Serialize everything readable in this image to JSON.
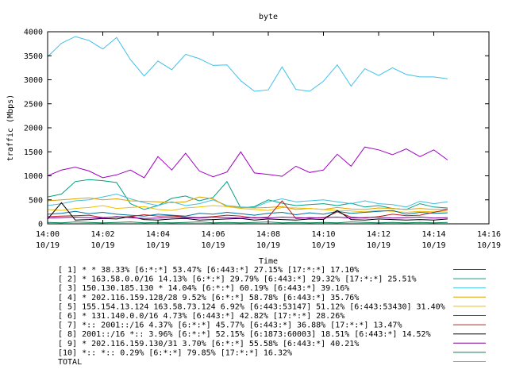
{
  "chart_data": {
    "type": "line",
    "title": "byte",
    "xlabel": "Time",
    "ylabel": "traffic (Mbps)",
    "ylim": [
      0,
      4000
    ],
    "yticks": [
      0,
      500,
      1000,
      1500,
      2000,
      2500,
      3000,
      3500,
      4000
    ],
    "ytick_labels": [
      "0",
      "500",
      "1000",
      "1500",
      "2000",
      "2500",
      "3000",
      "3500",
      "4000"
    ],
    "xlim": [
      0,
      16
    ],
    "xtick_values": [
      0,
      2,
      4,
      6,
      8,
      10,
      12,
      14,
      16
    ],
    "xtick_labels": [
      [
        "14:00",
        "10/19"
      ],
      [
        "14:02",
        "10/19"
      ],
      [
        "14:04",
        "10/19"
      ],
      [
        "14:06",
        "10/19"
      ],
      [
        "14:08",
        "10/19"
      ],
      [
        "14:10",
        "10/19"
      ],
      [
        "14:12",
        "10/19"
      ],
      [
        "14:14",
        "10/19"
      ],
      [
        "14:16",
        "10/19"
      ]
    ],
    "grid": false,
    "legend_position": "bottom",
    "x": [
      0,
      0.5,
      1,
      1.5,
      2,
      2.5,
      3,
      3.5,
      4,
      4.5,
      5,
      5.5,
      6,
      6.5,
      7,
      7.5,
      8,
      8.5,
      9,
      9.5,
      10,
      10.5,
      11,
      11.5,
      12,
      12.5,
      13,
      13.5,
      14,
      14.5
    ],
    "series": [
      {
        "name": "[ 1] * * 38.33%  [6:*:*] 53.47% [6:443:*] 27.15% [17:*:*] 17.10%",
        "color": "#a000c0",
        "values": [
          1000,
          1120,
          1180,
          1100,
          960,
          1020,
          1120,
          960,
          1400,
          1120,
          1470,
          1100,
          980,
          1080,
          1500,
          1060,
          1030,
          990,
          1200,
          1070,
          1120,
          1450,
          1200,
          1600,
          1540,
          1440,
          1560,
          1400,
          1540,
          1330
        ]
      },
      {
        "name": "[ 2] * 163.58.0.0/16 14.13%  [6:*:*] 29.79% [6:443:*] 29.32% [17:*:*] 25.51%",
        "color": "#00a080",
        "values": [
          560,
          620,
          880,
          920,
          900,
          860,
          420,
          300,
          380,
          530,
          580,
          480,
          550,
          880,
          330,
          360,
          500,
          430,
          380,
          400,
          420,
          380,
          430,
          350,
          380,
          320,
          300,
          420,
          350,
          330
        ]
      },
      {
        "name": "[ 3] 150.130.185.130 * 14.04%  [6:*:*] 60.19% [6:443:*] 39.16%",
        "color": "#40c0e0",
        "values": [
          380,
          420,
          480,
          500,
          560,
          620,
          520,
          440,
          380,
          460,
          380,
          420,
          500,
          380,
          350,
          340,
          460,
          520,
          460,
          480,
          500,
          460,
          420,
          480,
          420,
          400,
          350,
          470,
          420,
          460
        ]
      },
      {
        "name": "[ 4] * 202.116.159.128/28 9.52%  [6:*:*] 58.78% [6:443:*] 35.76%",
        "color": "#e0a000",
        "values": [
          480,
          500,
          520,
          540,
          500,
          520,
          480,
          470,
          460,
          440,
          460,
          560,
          520,
          360,
          340,
          330,
          340,
          360,
          300,
          320,
          300,
          340,
          310,
          300,
          330,
          320,
          300,
          320,
          300,
          310
        ]
      },
      {
        "name": "[ 5] 155.154.13.124 163.58.73.124 6.92%  [6:443:53147] 51.12% [6:443:53430] 31.40%",
        "color": "#f0c000",
        "values": [
          300,
          280,
          320,
          340,
          380,
          320,
          340,
          360,
          300,
          280,
          330,
          350,
          380,
          360,
          320,
          300,
          280,
          340,
          330,
          320,
          300,
          280,
          270,
          250,
          280,
          260,
          240,
          260,
          250,
          270
        ]
      },
      {
        "name": "[ 6] * 131.140.0.0/16 4.73%  [6:443:*] 42.82% [17:*:*] 28.26%",
        "color": "#0070a0",
        "values": [
          200,
          220,
          260,
          210,
          240,
          200,
          180,
          160,
          200,
          180,
          160,
          220,
          200,
          240,
          210,
          180,
          220,
          240,
          190,
          230,
          200,
          260,
          220,
          240,
          260,
          280,
          200,
          240,
          220,
          230
        ]
      },
      {
        "name": "[ 7] *:: 2001::/16 4.37%  [6:*:*] 45.77% [6:443:*] 36.88% [17:*:*] 13.47%",
        "color": "#c02020",
        "values": [
          150,
          160,
          170,
          180,
          130,
          140,
          150,
          190,
          160,
          170,
          140,
          130,
          150,
          180,
          160,
          120,
          140,
          480,
          110,
          130,
          120,
          250,
          140,
          120,
          150,
          200,
          170,
          180,
          240,
          300
        ]
      },
      {
        "name": "[ 8] 2001::/16 *:: 3.96%  [6:*:*] 52.15% [6:1873:60003] 18.51% [6:443:*] 14.52%",
        "color": "#000000",
        "values": [
          100,
          440,
          80,
          90,
          110,
          100,
          150,
          90,
          80,
          100,
          110,
          80,
          90,
          100,
          110,
          80,
          100,
          90,
          80,
          100,
          90,
          280,
          90,
          80,
          100,
          90,
          80,
          90,
          80,
          100
        ]
      },
      {
        "name": "[ 9] * 202.116.159.130/31 3.70%  [6:*:*] 55.58% [6:443:*] 40.21%",
        "color": "#8000a0",
        "values": [
          120,
          130,
          140,
          130,
          120,
          150,
          130,
          110,
          120,
          140,
          130,
          120,
          140,
          130,
          120,
          130,
          120,
          140,
          130,
          120,
          130,
          140,
          120,
          130,
          140,
          120,
          130,
          140,
          120,
          130
        ]
      },
      {
        "name": "[10] *:: *:: 0.29%  [6:*:*] 79.85% [17:*:*] 16.32%",
        "color": "#008050",
        "values": [
          30,
          20,
          40,
          30,
          20,
          30,
          40,
          20,
          30,
          20,
          30,
          40,
          20,
          30,
          20,
          30,
          40,
          20,
          30,
          20,
          30,
          20,
          40,
          30,
          20,
          30,
          20,
          30,
          20,
          30
        ]
      },
      {
        "name": "TOTAL",
        "color": "#40c0e8",
        "values": [
          3480,
          3760,
          3900,
          3820,
          3640,
          3880,
          3420,
          3080,
          3390,
          3210,
          3530,
          3440,
          3300,
          3310,
          2980,
          2760,
          2790,
          3270,
          2800,
          2760,
          2970,
          3310,
          2870,
          3230,
          3090,
          3250,
          3110,
          3060,
          3060,
          3020
        ]
      }
    ]
  }
}
